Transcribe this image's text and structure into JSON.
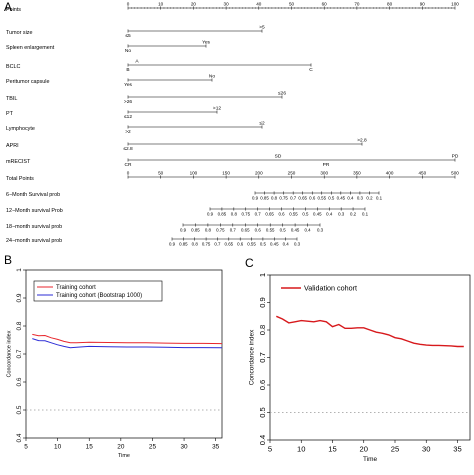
{
  "panels": {
    "A": "A",
    "B": "B",
    "C": "C"
  },
  "chart_data": [
    {
      "type": "nomogram",
      "rows": [
        {
          "name": "Points",
          "scale": [
            0,
            10,
            20,
            30,
            40,
            50,
            60,
            70,
            80,
            90,
            100
          ],
          "labels": [],
          "labels_below": []
        },
        {
          "name": "Tumor size",
          "scale": [],
          "labels": [
            ">5"
          ],
          "labels_below": [
            "≤5"
          ]
        },
        {
          "name": "Spleen enlargement",
          "scale": [],
          "labels": [
            "Yes"
          ],
          "labels_below": [
            "No"
          ]
        },
        {
          "name": "BCLC",
          "scale": [],
          "labels": [
            "A"
          ],
          "labels_below": [
            "B",
            "C"
          ]
        },
        {
          "name": "Peritumor capsule",
          "scale": [],
          "labels": [
            "No"
          ],
          "labels_below": [
            "Yes"
          ]
        },
        {
          "name": "TBIL",
          "scale": [],
          "labels": [
            "≤26"
          ],
          "labels_below": [
            ">26"
          ]
        },
        {
          "name": "PT",
          "scale": [],
          "labels": [
            ">12"
          ],
          "labels_below": [
            "≤12"
          ]
        },
        {
          "name": "Lymphocyte",
          "scale": [],
          "labels": [
            "≤2"
          ],
          "labels_below": [
            ">2"
          ]
        },
        {
          "name": "APRI",
          "scale": [],
          "labels": [
            ">2.8"
          ],
          "labels_below": [
            "≤2.8"
          ]
        },
        {
          "name": "mRECIST",
          "scale": [],
          "labels": [
            "SD",
            "PD"
          ],
          "labels_below": [
            "CR",
            "PR"
          ]
        },
        {
          "name": "Total Points",
          "scale": [
            0,
            50,
            100,
            150,
            200,
            250,
            300,
            350,
            400,
            450,
            500
          ],
          "labels": [],
          "labels_below": []
        },
        {
          "name": "6−Month Survival prob",
          "scale": [
            0.9,
            0.85,
            0.8,
            0.75,
            0.7,
            0.65,
            0.6,
            0.55,
            0.5,
            0.45,
            0.4,
            0.3,
            0.2,
            0.1
          ],
          "labels": [],
          "labels_below": []
        },
        {
          "name": "12−Month survival Prob",
          "scale": [
            0.9,
            0.85,
            0.8,
            0.75,
            0.7,
            0.65,
            0.6,
            0.55,
            0.5,
            0.45,
            0.4,
            0.3,
            0.2,
            0.1
          ],
          "labels": [],
          "labels_below": []
        },
        {
          "name": "18−month survival prob",
          "scale": [
            0.9,
            0.85,
            0.8,
            0.75,
            0.7,
            0.65,
            0.6,
            0.55,
            0.5,
            0.45,
            0.4,
            0.3
          ],
          "labels": [],
          "labels_below": []
        },
        {
          "name": "24−month survival prob",
          "scale": [
            0.9,
            0.85,
            0.8,
            0.75,
            0.7,
            0.65,
            0.6,
            0.55,
            0.5,
            0.45,
            0.4,
            0.3
          ],
          "labels": [],
          "labels_below": []
        }
      ]
    },
    {
      "type": "line",
      "xlabel": "Time",
      "ylabel": "Concordance index",
      "xlim": [
        5,
        36
      ],
      "ylim": [
        0.4,
        1.0
      ],
      "xticks": [
        5,
        10,
        15,
        20,
        25,
        30,
        35
      ],
      "yticks": [
        0.4,
        0.5,
        0.6,
        0.7,
        0.8,
        0.9,
        1.0
      ],
      "reference_line": 0.5,
      "legend_position": "top-left",
      "series": [
        {
          "name": "Training cohort",
          "color": "#e8262c",
          "x": [
            6,
            7,
            8,
            9,
            10,
            11,
            12,
            13,
            15,
            18,
            21,
            24,
            27,
            30,
            33,
            36
          ],
          "y": [
            0.77,
            0.765,
            0.766,
            0.758,
            0.752,
            0.745,
            0.74,
            0.74,
            0.742,
            0.741,
            0.74,
            0.74,
            0.739,
            0.738,
            0.738,
            0.737
          ]
        },
        {
          "name": "Training cohort (Bootstrap 1000)",
          "color": "#2b2bd6",
          "x": [
            6,
            7,
            8,
            9,
            10,
            11,
            12,
            13,
            15,
            18,
            21,
            24,
            27,
            30,
            33,
            36
          ],
          "y": [
            0.755,
            0.748,
            0.747,
            0.74,
            0.733,
            0.727,
            0.722,
            0.724,
            0.727,
            0.726,
            0.725,
            0.725,
            0.724,
            0.723,
            0.723,
            0.722
          ]
        }
      ]
    },
    {
      "type": "line",
      "xlabel": "Time",
      "ylabel": "Concordance index",
      "xlim": [
        5,
        37
      ],
      "ylim": [
        0.4,
        1.0
      ],
      "xticks": [
        5,
        10,
        15,
        20,
        25,
        30,
        35
      ],
      "yticks": [
        0.4,
        0.5,
        0.6,
        0.7,
        0.8,
        0.9,
        1.0
      ],
      "reference_line": 0.5,
      "legend_position": "top-left",
      "series": [
        {
          "name": "Validation cohort",
          "color": "#d7191c",
          "x": [
            6,
            7,
            8,
            9,
            10,
            11,
            12,
            13,
            14,
            15,
            16,
            17,
            18,
            19,
            20,
            21,
            22,
            23,
            24,
            25,
            26,
            27,
            28,
            29,
            30,
            31,
            32,
            33,
            34,
            35,
            36
          ],
          "y": [
            0.85,
            0.84,
            0.826,
            0.83,
            0.834,
            0.832,
            0.83,
            0.834,
            0.83,
            0.812,
            0.82,
            0.806,
            0.806,
            0.808,
            0.808,
            0.8,
            0.792,
            0.788,
            0.782,
            0.772,
            0.768,
            0.76,
            0.752,
            0.748,
            0.745,
            0.744,
            0.744,
            0.743,
            0.742,
            0.74,
            0.74
          ]
        }
      ]
    }
  ]
}
